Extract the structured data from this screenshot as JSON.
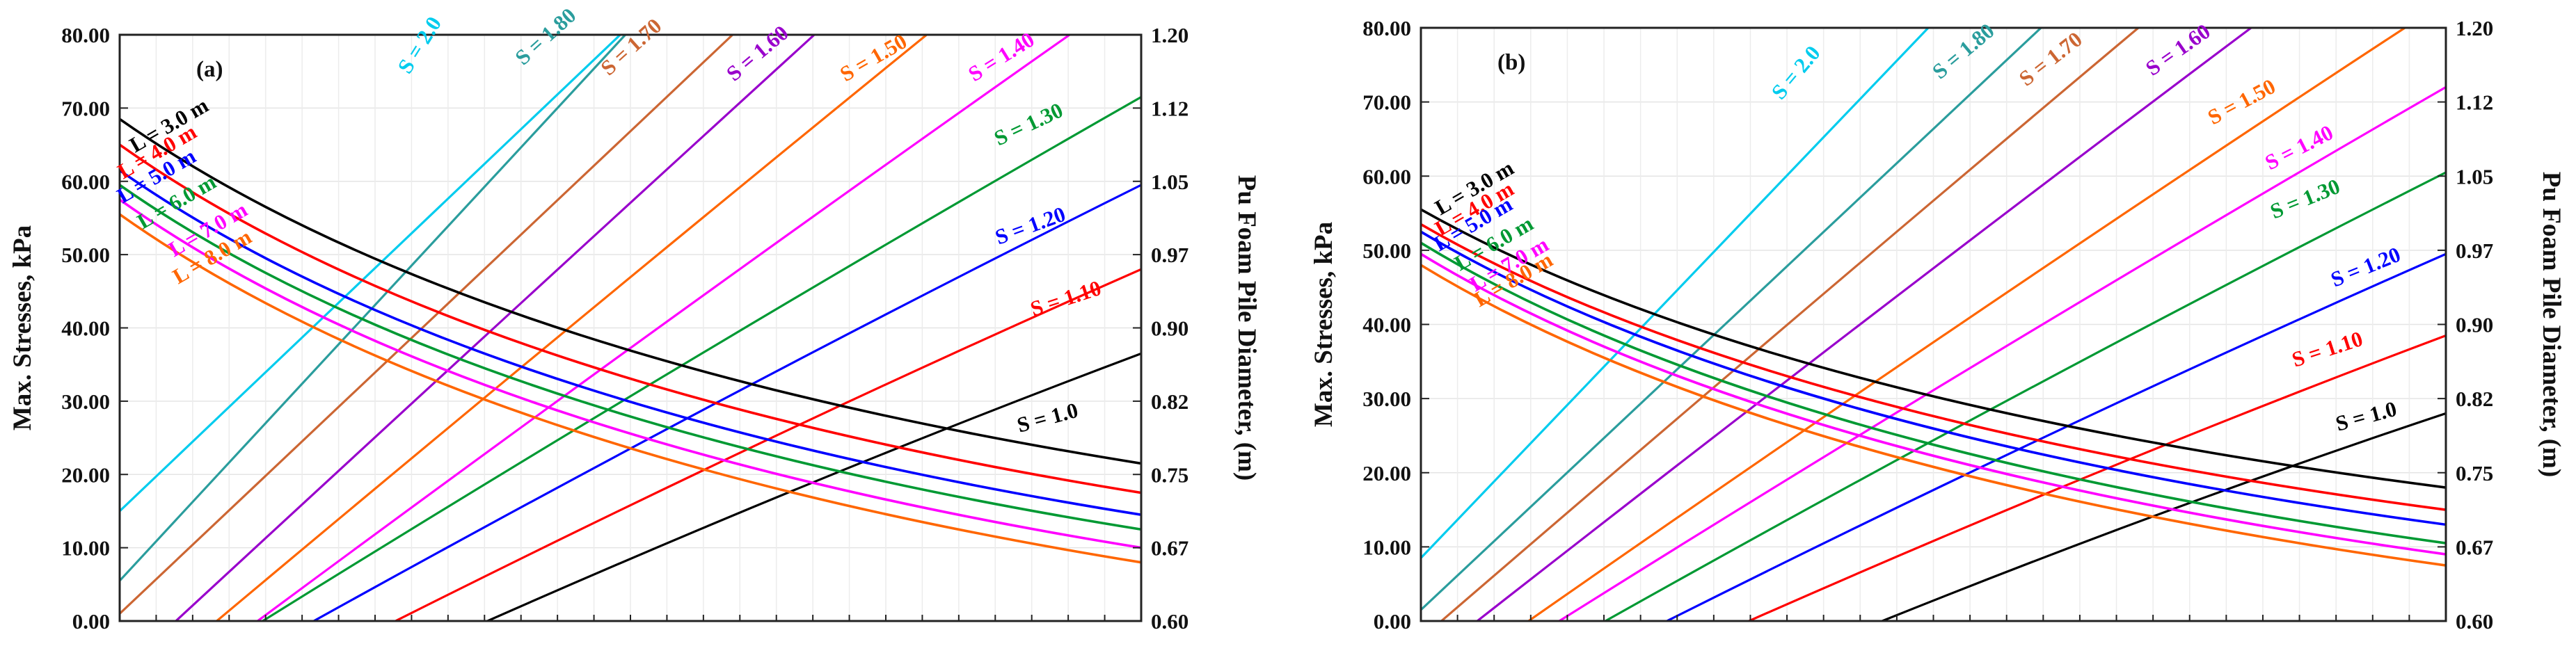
{
  "chart_data": [
    {
      "type": "line",
      "panel": "(a)",
      "ylabel": "Max. Stresses, kPa",
      "y2label": "Pu Foam Pile Diameter, (m)",
      "xlim": [
        0,
        10
      ],
      "ylim": [
        0,
        80
      ],
      "y2lim": [
        0.6,
        1.2
      ],
      "yticks": [
        "0.00",
        "10.00",
        "20.00",
        "30.00",
        "40.00",
        "50.00",
        "60.00",
        "70.00",
        "80.00"
      ],
      "y2ticks": [
        "0.60",
        "0.67",
        "0.75",
        "0.82",
        "0.90",
        "0.97",
        "1.05",
        "1.12",
        "1.20"
      ],
      "x_tick_count": 29,
      "series_L": [
        {
          "name": "L = 3.0 m",
          "color": "#000000",
          "y0": 68.5,
          "y1": 21.5
        },
        {
          "name": "L = 4.0 m",
          "color": "#ff0000",
          "y0": 65.0,
          "y1": 17.5
        },
        {
          "name": "L = 5.0 m",
          "color": "#0000ff",
          "y0": 61.5,
          "y1": 14.5
        },
        {
          "name": "L = 6.0 m",
          "color": "#009933",
          "y0": 59.5,
          "y1": 12.5
        },
        {
          "name": "L = 7.0 m",
          "color": "#ff00ff",
          "y0": 57.5,
          "y1": 10.0
        },
        {
          "name": "L = 8.0 m",
          "color": "#ff6600",
          "y0": 55.5,
          "y1": 8.0
        }
      ],
      "series_S": [
        {
          "name": "S = 2.0",
          "color": "#00ccee",
          "x0": 0.0,
          "y0": 15.0,
          "x1": 4.9,
          "y1": 80.0
        },
        {
          "name": "S = 1.80",
          "color": "#2a9d9d",
          "x0": 0.0,
          "y0": 5.5,
          "x1": 4.95,
          "y1": 80.0
        },
        {
          "name": "S = 1.70",
          "color": "#cc6633",
          "x0": 0.0,
          "y0": 1.0,
          "x1": 6.0,
          "y1": 80.0
        },
        {
          "name": "S = 1.60",
          "color": "#9900cc",
          "x0": 0.55,
          "y0": 0.0,
          "x1": 6.8,
          "y1": 80.0
        },
        {
          "name": "S = 1.50",
          "color": "#ff6600",
          "x0": 0.95,
          "y0": 0.0,
          "x1": 7.9,
          "y1": 80.0
        },
        {
          "name": "S = 1.40",
          "color": "#ff00ff",
          "x0": 1.35,
          "y0": 0.0,
          "x1": 9.3,
          "y1": 80.0
        },
        {
          "name": "S = 1.30",
          "color": "#009933",
          "x0": 1.4,
          "y0": 0.0,
          "x1": 10.0,
          "y1": 71.5
        },
        {
          "name": "S = 1.20",
          "color": "#0000ff",
          "x0": 1.9,
          "y0": 0.0,
          "x1": 10.0,
          "y1": 59.5
        },
        {
          "name": "S = 1.10",
          "color": "#ff0000",
          "x0": 2.7,
          "y0": 0.0,
          "x1": 10.0,
          "y1": 48.0
        },
        {
          "name": "S = 1.0",
          "color": "#000000",
          "x0": 3.6,
          "y0": 0.0,
          "x1": 10.0,
          "y1": 36.5
        }
      ]
    },
    {
      "type": "line",
      "panel": "(b)",
      "ylabel": "Max. Stresses, kPa",
      "y2label": "Pu Foam Pile Diameter, (m)",
      "xlim": [
        0,
        10
      ],
      "ylim": [
        0,
        80
      ],
      "y2lim": [
        0.6,
        1.2
      ],
      "yticks": [
        "0.00",
        "10.00",
        "20.00",
        "30.00",
        "40.00",
        "50.00",
        "60.00",
        "70.00",
        "80.00"
      ],
      "y2ticks": [
        "0.60",
        "0.67",
        "0.75",
        "0.82",
        "0.90",
        "0.97",
        "1.05",
        "1.12",
        "1.20"
      ],
      "x_tick_count": 29,
      "series_L": [
        {
          "name": "L = 3.0 m",
          "color": "#000000",
          "y0": 55.5,
          "y1": 18.0
        },
        {
          "name": "L = 4.0 m",
          "color": "#ff0000",
          "y0": 53.5,
          "y1": 15.0
        },
        {
          "name": "L = 5.0 m",
          "color": "#0000ff",
          "y0": 52.5,
          "y1": 13.0
        },
        {
          "name": "L = 6.0 m",
          "color": "#009933",
          "y0": 51.0,
          "y1": 10.5
        },
        {
          "name": "L = 7.0 m",
          "color": "#ff00ff",
          "y0": 49.5,
          "y1": 9.0
        },
        {
          "name": "L = 8.0 m",
          "color": "#ff6600",
          "y0": 48.0,
          "y1": 7.5
        }
      ],
      "series_S": [
        {
          "name": "S = 2.0",
          "color": "#00ccee",
          "x0": 0.0,
          "y0": 8.5,
          "x1": 4.95,
          "y1": 80.0
        },
        {
          "name": "S = 1.80",
          "color": "#2a9d9d",
          "x0": 0.0,
          "y0": 1.5,
          "x1": 6.05,
          "y1": 80.0
        },
        {
          "name": "S = 1.70",
          "color": "#cc6633",
          "x0": 0.2,
          "y0": 0.0,
          "x1": 7.0,
          "y1": 80.0
        },
        {
          "name": "S = 1.60",
          "color": "#9900cc",
          "x0": 0.55,
          "y0": 0.0,
          "x1": 8.1,
          "y1": 80.0
        },
        {
          "name": "S = 1.50",
          "color": "#ff6600",
          "x0": 1.05,
          "y0": 0.0,
          "x1": 9.6,
          "y1": 80.0
        },
        {
          "name": "S = 1.40",
          "color": "#ff00ff",
          "x0": 1.35,
          "y0": 0.0,
          "x1": 10.0,
          "y1": 72.0
        },
        {
          "name": "S = 1.30",
          "color": "#009933",
          "x0": 1.8,
          "y0": 0.0,
          "x1": 10.0,
          "y1": 60.5
        },
        {
          "name": "S = 1.20",
          "color": "#0000ff",
          "x0": 2.4,
          "y0": 0.0,
          "x1": 10.0,
          "y1": 49.5
        },
        {
          "name": "S = 1.10",
          "color": "#ff0000",
          "x0": 3.2,
          "y0": 0.0,
          "x1": 10.0,
          "y1": 38.5
        },
        {
          "name": "S = 1.0",
          "color": "#000000",
          "x0": 4.5,
          "y0": 0.0,
          "x1": 10.0,
          "y1": 28.0
        }
      ]
    }
  ]
}
